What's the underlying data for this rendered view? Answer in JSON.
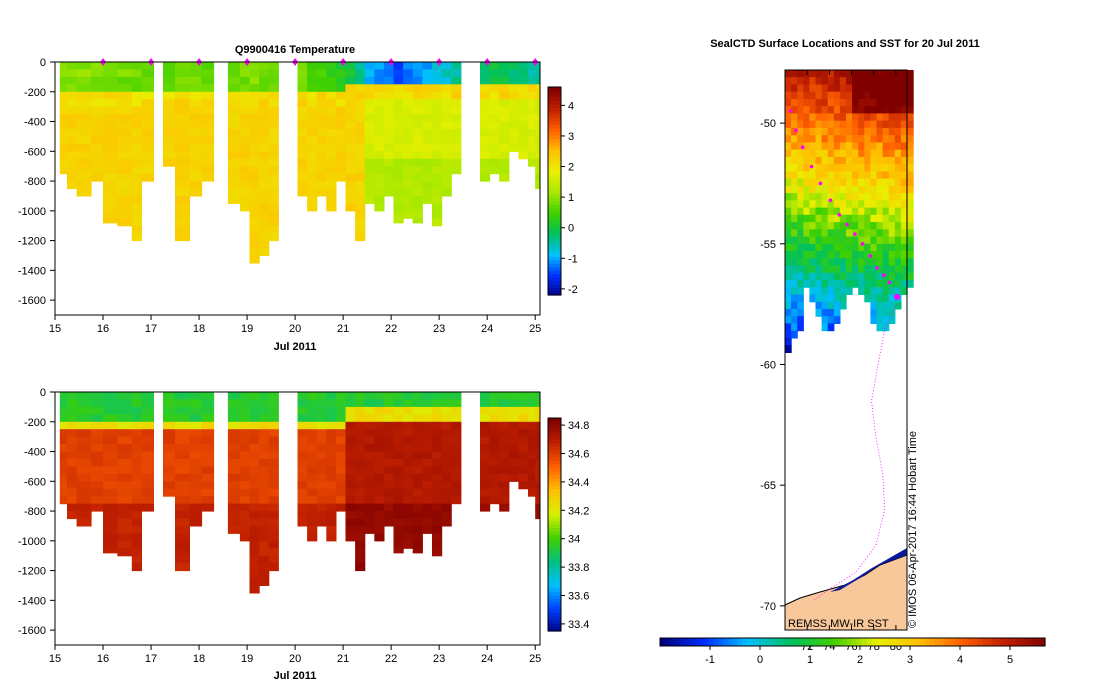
{
  "chart_data": [
    {
      "type": "heatmap",
      "title": "Q9900416  Temperature",
      "xlabel": "Jul 2011",
      "ylabel": "",
      "x_ticks": [
        "15",
        "16",
        "17",
        "18",
        "19",
        "20",
        "21",
        "22",
        "23",
        "24",
        "25"
      ],
      "x_range": [
        15,
        25.1
      ],
      "y_ticks": [
        "0",
        "-200",
        "-400",
        "-600",
        "-800",
        "-1000",
        "-1200",
        "-1400",
        "-1600"
      ],
      "y_range": [
        0,
        -1700
      ],
      "colorbar": {
        "ticks": [
          "4",
          "3",
          "2",
          "1",
          "0",
          "-1",
          "-2"
        ],
        "range": [
          -2.2,
          4.6
        ],
        "colors": [
          "#00007f",
          "#0030ff",
          "#00c0ff",
          "#00c060",
          "#40d000",
          "#a8e800",
          "#e8f000",
          "#ffc000",
          "#ff6000",
          "#c02000",
          "#800000"
        ]
      },
      "surface_temperature": {
        "days": [
          15.1,
          16.0,
          17.0,
          18.0,
          19.0,
          20.0,
          21.0,
          21.5,
          22.0,
          22.5,
          23.0,
          23.5,
          24.0,
          24.5,
          25.0
        ],
        "values": [
          1.0,
          0.9,
          0.8,
          0.8,
          0.9,
          0.8,
          0.2,
          -0.9,
          -1.4,
          -1.1,
          -0.6,
          -0.3,
          0.0,
          -0.2,
          -0.5
        ]
      },
      "deep_temperature": 2.3,
      "profile_markers_days": [
        16.0,
        17.0,
        18.0,
        19.0,
        20.0,
        21.0,
        22.0,
        23.0,
        24.0,
        25.0
      ]
    },
    {
      "type": "heatmap",
      "title": "",
      "xlabel": "Jul 2011",
      "ylabel": "",
      "x_ticks": [
        "15",
        "16",
        "17",
        "18",
        "19",
        "20",
        "21",
        "22",
        "23",
        "24",
        "25"
      ],
      "x_range": [
        15,
        25.1
      ],
      "y_ticks": [
        "0",
        "-200",
        "-400",
        "-600",
        "-800",
        "-1000",
        "-1200",
        "-1400",
        "-1600"
      ],
      "y_range": [
        0,
        -1700
      ],
      "colorbar": {
        "ticks": [
          "34.8",
          "34.6",
          "34.4",
          "34.2",
          "34",
          "33.8",
          "33.6",
          "33.4"
        ],
        "range": [
          33.35,
          34.85
        ],
        "colors": [
          "#00007f",
          "#0040ff",
          "#00c0ff",
          "#00c080",
          "#40d000",
          "#d8f000",
          "#ffc000",
          "#ff6000",
          "#c02000",
          "#800000"
        ]
      },
      "surface_salinity": 33.95,
      "deep_salinity_before_21": 34.6,
      "deep_salinity_after_21": 34.72
    },
    {
      "type": "heatmap",
      "title": "SealCTD Surface Locations and SST for 20 Jul 2011",
      "y_ticks": [
        "-50",
        "-55",
        "-60",
        "-65",
        "-70"
      ],
      "lat_range": [
        -47.8,
        -71.0
      ],
      "x_ticks": [
        "72",
        "74",
        "76",
        "78",
        "80"
      ],
      "lon_range": [
        70.0,
        81.0
      ],
      "colorbar": {
        "ticks": [
          "-1",
          "0",
          "1",
          "2",
          "3",
          "4",
          "5"
        ],
        "range": [
          -2.0,
          5.7
        ],
        "colors": [
          "#00007f",
          "#0030ff",
          "#00c0ff",
          "#00c060",
          "#40d000",
          "#e8f000",
          "#ffc000",
          "#ff6000",
          "#c02000",
          "#800000"
        ]
      },
      "seal_track": {
        "lat": [
          -49.5,
          -50.3,
          -51.0,
          -51.8,
          -52.5,
          -53.2,
          -53.8,
          -54.2,
          -54.6,
          -55.0,
          -55.5,
          -56.0,
          -56.3,
          -56.6,
          -57.2
        ],
        "lon": [
          70.5,
          71.0,
          71.6,
          72.4,
          73.2,
          74.1,
          74.9,
          75.6,
          76.3,
          77.0,
          77.7,
          78.3,
          78.9,
          79.4,
          80.1
        ]
      },
      "footnote_source": "REMSS MW-IR SST",
      "footnote_credit": "© IMOS 06-Apr-2017 16:44 Hobart Time"
    }
  ]
}
